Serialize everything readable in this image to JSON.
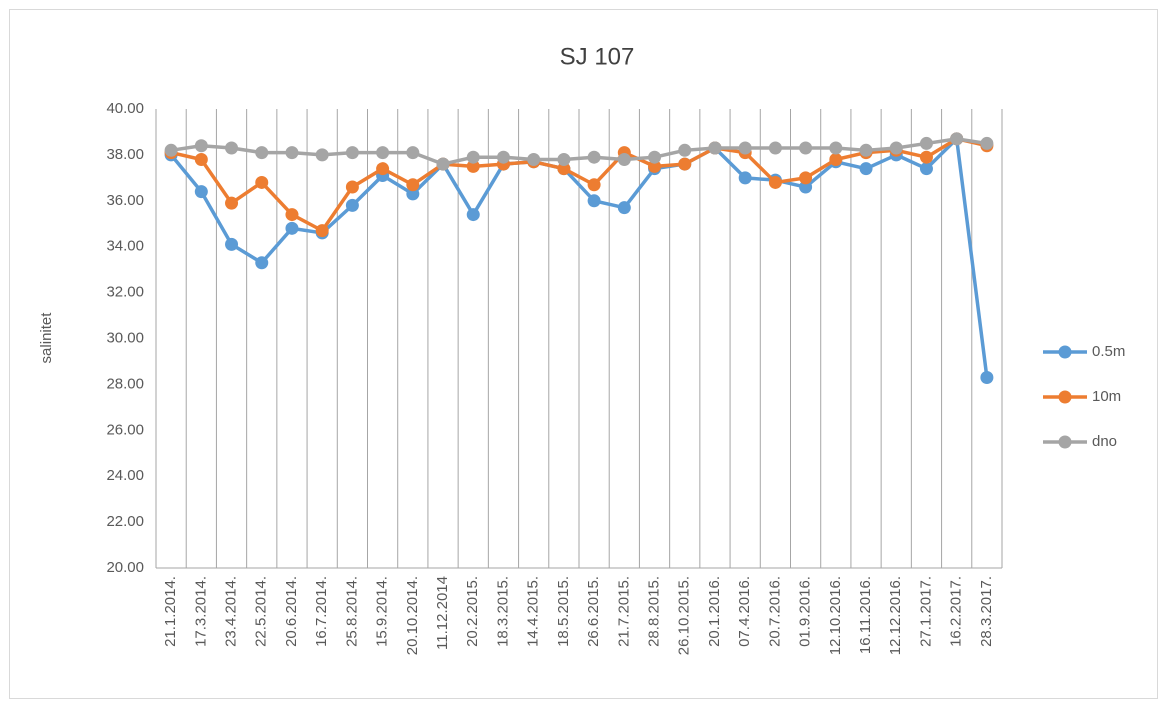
{
  "chart_data": {
    "type": "line",
    "title": "SJ 107",
    "y_label": "salinitet",
    "categories": [
      "21.1.2014.",
      "17.3.2014.",
      "23.4.2014.",
      "22.5.2014.",
      "20.6.2014.",
      "16.7.2014.",
      "25.8.2014.",
      "15.9.2014.",
      "20.10.2014.",
      "11.12.2014",
      "20.2.2015.",
      "18.3.2015.",
      "14.4.2015.",
      "18.5.2015.",
      "26.6.2015.",
      "21.7.2015.",
      "28.8.2015.",
      "26.10.2015.",
      "20.1.2016.",
      "07.4.2016.",
      "20.7.2016.",
      "01.9.2016.",
      "12.10.2016.",
      "16.11.2016.",
      "12.12.2016.",
      "27.1.2017.",
      "16.2.2017.",
      "28.3.2017."
    ],
    "series": [
      {
        "name": "0.5m",
        "color": "#5b9bd5",
        "values": [
          38.0,
          36.4,
          34.1,
          33.3,
          34.8,
          34.6,
          35.8,
          37.1,
          36.3,
          37.6,
          35.4,
          37.6,
          37.7,
          37.4,
          36.0,
          35.7,
          37.4,
          37.6,
          38.3,
          37.0,
          36.9,
          36.6,
          37.7,
          37.4,
          38.0,
          37.4,
          38.7,
          28.3
        ]
      },
      {
        "name": "10m",
        "color": "#ed7d31",
        "values": [
          38.1,
          37.8,
          35.9,
          36.8,
          35.4,
          34.7,
          36.6,
          37.4,
          36.7,
          37.6,
          37.5,
          37.6,
          37.7,
          37.4,
          36.7,
          38.1,
          37.5,
          37.6,
          38.3,
          38.1,
          36.8,
          37.0,
          37.8,
          38.1,
          38.2,
          37.9,
          38.7,
          38.4
        ]
      },
      {
        "name": "dno",
        "color": "#a5a5a5",
        "values": [
          38.2,
          38.4,
          38.3,
          38.1,
          38.1,
          38.0,
          38.1,
          38.1,
          38.1,
          37.6,
          37.9,
          37.9,
          37.8,
          37.8,
          37.9,
          37.8,
          37.9,
          38.2,
          38.3,
          38.3,
          38.3,
          38.3,
          38.3,
          38.2,
          38.3,
          38.5,
          38.7,
          38.5
        ]
      }
    ],
    "ylim": [
      20,
      40
    ],
    "yticks": [
      {
        "value": 20,
        "label": "20.00"
      },
      {
        "value": 22,
        "label": "22.00"
      },
      {
        "value": 24,
        "label": "24.00"
      },
      {
        "value": 26,
        "label": "26.00"
      },
      {
        "value": 28,
        "label": "28.00"
      },
      {
        "value": 30,
        "label": "30.00"
      },
      {
        "value": 32,
        "label": "32.00"
      },
      {
        "value": 34,
        "label": "34.00"
      },
      {
        "value": 36,
        "label": "36.00"
      },
      {
        "value": 38,
        "label": "38.00"
      },
      {
        "value": 40,
        "label": "40.00"
      }
    ],
    "category_grid": true,
    "legend": "right"
  }
}
